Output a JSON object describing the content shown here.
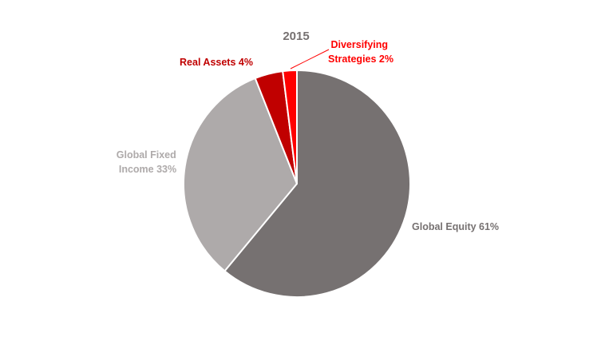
{
  "chart_data": {
    "type": "pie",
    "title": "2015",
    "slices": [
      {
        "label": "Global Equity 61%",
        "value": 61,
        "color": "#767171"
      },
      {
        "label": "Global Fixed Income 33%",
        "value": 33,
        "color": "#AEAAAA"
      },
      {
        "label": "Real Assets 4%",
        "value": 4,
        "color": "#C00000"
      },
      {
        "label": "Diversifying Strategies 2%",
        "value": 2,
        "color": "#FF0000"
      }
    ],
    "legend": "none"
  },
  "colors": {
    "title": "#767171",
    "equity_label": "#767171",
    "fixed_income_label": "#AEAAAA",
    "real_assets_label": "#C00000",
    "diversifying_label": "#FF0000"
  }
}
